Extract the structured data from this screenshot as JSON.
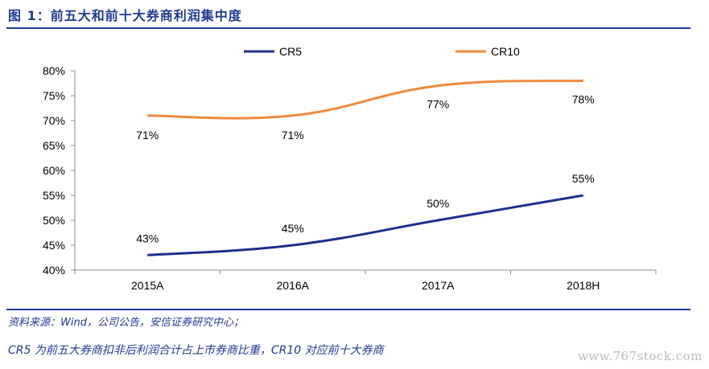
{
  "header": {
    "title": "图 1：前五大和前十大券商利润集中度"
  },
  "footer": {
    "source": "资料来源：Wind，公司公告，安信证券研究中心；",
    "note": "CR5 为前五大券商扣非后利润合计占上市券商比重，CR10 对应前十大券商",
    "watermark": "www.767stock.com"
  },
  "chart_data": {
    "type": "line",
    "categories": [
      "2015A",
      "2016A",
      "2017A",
      "2018H"
    ],
    "series": [
      {
        "name": "CR5",
        "color": "#1f2f8f",
        "values": [
          43,
          45,
          50,
          55
        ],
        "labels": [
          "43%",
          "45%",
          "50%",
          "55%"
        ]
      },
      {
        "name": "CR10",
        "color": "#f08a3c",
        "values": [
          71,
          71,
          77,
          78
        ],
        "labels": [
          "71%",
          "71%",
          "77%",
          "78%"
        ]
      }
    ],
    "yticks": [
      "40%",
      "45%",
      "50%",
      "55%",
      "60%",
      "65%",
      "70%",
      "75%",
      "80%"
    ],
    "ylim": [
      40,
      80
    ],
    "legend": "top"
  }
}
